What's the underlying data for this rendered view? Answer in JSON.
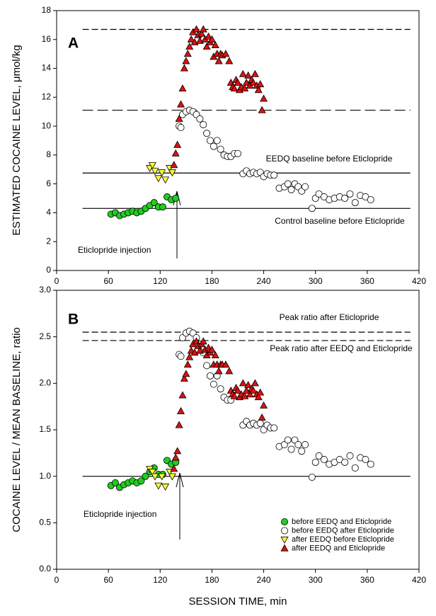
{
  "chart_data": [
    {
      "type": "scatter",
      "panel_label": "A",
      "y_label": "ESTIMATED COCAINE LEVEL, μmol/kg",
      "xlim": [
        0,
        420
      ],
      "xticks": [
        0,
        60,
        120,
        180,
        240,
        300,
        360,
        420
      ],
      "ylim": [
        0,
        18
      ],
      "yticks": [
        0,
        2,
        4,
        6,
        8,
        10,
        12,
        14,
        16,
        18
      ],
      "annotations": [
        "EEDQ baseline before Eticlopride",
        "Control baseline before Eticlopride",
        "Eticlopride injection"
      ],
      "hlines": [
        {
          "y": 16.7,
          "style": "dashed",
          "x": [
            30,
            410
          ]
        },
        {
          "y": 11.1,
          "style": "longdash",
          "x": [
            30,
            410
          ]
        },
        {
          "y": 6.75,
          "style": "solid",
          "x": [
            30,
            410
          ]
        },
        {
          "y": 4.3,
          "style": "solid",
          "x": [
            30,
            410
          ]
        }
      ],
      "series": [
        {
          "marker": "circle",
          "color": "#22cc22",
          "x": [
            63,
            68,
            73,
            78,
            83,
            88,
            93,
            98,
            103,
            108,
            113,
            118,
            123,
            128,
            133,
            138
          ],
          "values": [
            3.9,
            4.0,
            3.8,
            3.9,
            4.0,
            4.1,
            4.0,
            4.1,
            4.3,
            4.5,
            4.7,
            4.4,
            4.4,
            5.1,
            4.9,
            5.0
          ]
        },
        {
          "marker": "circle",
          "color": "#ffffff",
          "x": [
            142,
            144,
            146,
            150,
            154,
            158,
            162,
            166,
            170,
            174,
            178,
            182,
            186,
            190,
            194,
            198,
            202,
            206,
            210,
            216,
            220,
            224,
            228,
            232,
            236,
            240,
            244,
            248,
            252,
            258,
            264,
            268,
            272,
            276,
            280,
            284,
            288,
            296,
            300,
            304,
            310,
            316,
            322,
            328,
            334,
            340,
            346,
            352,
            358,
            364
          ],
          "values": [
            10.0,
            9.9,
            10.8,
            11.0,
            11.1,
            11.0,
            10.8,
            10.5,
            10.1,
            9.5,
            9.0,
            8.6,
            9.0,
            8.4,
            8.0,
            7.9,
            7.9,
            8.1,
            8.1,
            6.7,
            6.9,
            6.7,
            6.8,
            6.7,
            6.8,
            6.5,
            6.7,
            6.6,
            6.6,
            5.7,
            5.8,
            6.0,
            5.6,
            6.0,
            5.8,
            5.5,
            5.8,
            4.3,
            5.0,
            5.3,
            5.1,
            4.9,
            5.0,
            5.1,
            5.0,
            5.3,
            4.7,
            5.2,
            5.1,
            4.9
          ]
        },
        {
          "marker": "triangle-down",
          "color": "#ffff33",
          "x": [
            108,
            111,
            114,
            118,
            122,
            126,
            131,
            134
          ],
          "values": [
            7.1,
            7.3,
            6.9,
            6.4,
            6.8,
            6.3,
            7.1,
            6.8
          ]
        },
        {
          "marker": "triangle-up",
          "color": "#dd1111",
          "x": [
            136,
            138,
            140,
            142,
            144,
            146,
            148,
            150,
            152,
            154,
            156,
            158,
            160,
            162,
            164,
            166,
            168,
            170,
            172,
            174,
            176,
            178,
            180,
            182,
            184,
            186,
            188,
            190,
            192,
            196,
            200,
            202,
            204,
            206,
            208,
            210,
            212,
            214,
            216,
            218,
            220,
            222,
            224,
            226,
            228,
            230,
            232,
            234,
            236,
            238,
            240
          ],
          "values": [
            7.3,
            8.1,
            8.7,
            10.5,
            11.5,
            12.6,
            14.0,
            14.5,
            15.0,
            15.5,
            16.0,
            16.5,
            15.8,
            16.7,
            16.3,
            15.9,
            16.4,
            16.7,
            16.0,
            15.5,
            16.2,
            15.8,
            16.0,
            14.8,
            15.6,
            15.0,
            14.5,
            15.0,
            14.9,
            15.0,
            14.5,
            13.0,
            12.7,
            12.6,
            13.2,
            13.0,
            12.5,
            12.7,
            13.6,
            12.6,
            13.0,
            13.5,
            12.8,
            13.2,
            13.0,
            13.6,
            12.8,
            12.5,
            12.9,
            11.1,
            11.9
          ]
        }
      ]
    },
    {
      "type": "scatter",
      "panel_label": "B",
      "y_label": "COCAINE LEVEL / MEAN BASELINE, ratio",
      "x_label": "SESSION TIME, min",
      "xlim": [
        0,
        420
      ],
      "xticks": [
        0,
        60,
        120,
        180,
        240,
        300,
        360,
        420
      ],
      "ylim": [
        0,
        3
      ],
      "yticks": [
        {
          "value": 0,
          "label": "0.0"
        },
        0.5,
        {
          "value": 1,
          "label": "1.0"
        },
        1.5,
        {
          "value": 2,
          "label": "2.0"
        },
        2.5,
        {
          "value": 3,
          "label": "3.0"
        }
      ],
      "annotations": [
        "Peak ratio after Eticlopride",
        "Peak ratio after EEDQ and Eticlopride",
        "Eticlopride injection"
      ],
      "legend": "lower right",
      "hlines": [
        {
          "y": 2.55,
          "style": "dashed",
          "x": [
            30,
            410
          ]
        },
        {
          "y": 2.46,
          "style": "dashed",
          "x": [
            30,
            410
          ]
        },
        {
          "y": 1.0,
          "style": "solid",
          "x": [
            30,
            410
          ]
        }
      ],
      "series": [
        {
          "name": "before EEDQ and Eticlopride",
          "marker": "circle",
          "color": "#22cc22",
          "x": [
            63,
            68,
            73,
            78,
            83,
            88,
            93,
            98,
            103,
            108,
            113,
            118,
            123,
            128,
            133,
            138
          ],
          "values": [
            0.9,
            0.93,
            0.88,
            0.91,
            0.93,
            0.95,
            0.93,
            0.95,
            1.0,
            1.05,
            1.09,
            1.02,
            1.02,
            1.17,
            1.13,
            1.15
          ]
        },
        {
          "name": "before EEDQ after Eticlopride",
          "marker": "circle",
          "color": "#ffffff",
          "x": [
            142,
            144,
            146,
            150,
            154,
            158,
            162,
            166,
            170,
            174,
            178,
            182,
            186,
            190,
            194,
            198,
            202,
            206,
            210,
            216,
            220,
            224,
            228,
            232,
            236,
            240,
            244,
            248,
            252,
            258,
            264,
            268,
            272,
            276,
            280,
            284,
            288,
            296,
            300,
            304,
            310,
            316,
            322,
            328,
            334,
            340,
            346,
            352,
            358,
            364
          ],
          "values": [
            2.31,
            2.29,
            2.49,
            2.54,
            2.56,
            2.54,
            2.49,
            2.42,
            2.33,
            2.19,
            2.08,
            1.99,
            2.08,
            1.94,
            1.85,
            1.82,
            1.82,
            1.87,
            1.87,
            1.55,
            1.59,
            1.55,
            1.57,
            1.55,
            1.57,
            1.5,
            1.55,
            1.52,
            1.52,
            1.32,
            1.34,
            1.39,
            1.29,
            1.39,
            1.34,
            1.27,
            1.34,
            0.99,
            1.15,
            1.22,
            1.18,
            1.13,
            1.15,
            1.18,
            1.15,
            1.22,
            1.09,
            1.2,
            1.18,
            1.13
          ]
        },
        {
          "name": "after EEDQ before Eticlopride",
          "marker": "triangle-down",
          "color": "#ffff33",
          "x": [
            108,
            111,
            114,
            118,
            122,
            126,
            131,
            134
          ],
          "values": [
            1.08,
            1.05,
            1.0,
            0.9,
            1.0,
            0.89,
            1.05,
            1.0
          ]
        },
        {
          "name": "after EEDQ and Eticlopride",
          "marker": "triangle-up",
          "color": "#dd1111",
          "x": [
            136,
            138,
            140,
            142,
            144,
            146,
            148,
            150,
            152,
            154,
            156,
            158,
            160,
            162,
            164,
            166,
            168,
            170,
            172,
            174,
            176,
            178,
            180,
            182,
            184,
            186,
            188,
            190,
            192,
            196,
            200,
            202,
            204,
            206,
            208,
            210,
            212,
            214,
            216,
            218,
            220,
            222,
            224,
            226,
            228,
            230,
            232,
            234,
            236,
            238,
            240
          ],
          "values": [
            1.08,
            1.2,
            1.27,
            1.55,
            1.7,
            1.87,
            2.05,
            2.1,
            2.2,
            2.28,
            2.35,
            2.42,
            2.33,
            2.45,
            2.4,
            2.35,
            2.42,
            2.45,
            2.36,
            2.3,
            2.38,
            2.33,
            2.36,
            2.2,
            2.3,
            2.2,
            2.13,
            2.2,
            2.2,
            2.2,
            2.13,
            1.92,
            1.88,
            1.86,
            1.95,
            1.92,
            1.85,
            1.88,
            2.0,
            1.86,
            1.92,
            1.98,
            1.88,
            1.94,
            1.92,
            2.0,
            1.88,
            1.85,
            1.9,
            1.63,
            1.76
          ]
        }
      ]
    }
  ]
}
